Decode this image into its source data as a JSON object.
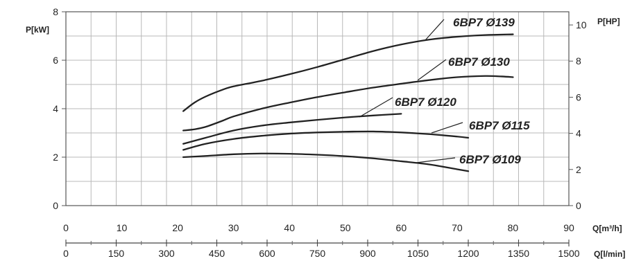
{
  "chart_data": {
    "type": "line",
    "y_left": {
      "label": "P[kW]",
      "ticks": [
        0,
        2,
        4,
        6,
        8
      ],
      "range": [
        0,
        8
      ]
    },
    "y_right": {
      "label": "P[HP]",
      "ticks": [
        0,
        2,
        4,
        6,
        8,
        10
      ],
      "range": [
        0,
        10.73
      ]
    },
    "x_primary": {
      "label": "Q[m³/h]",
      "ticks": [
        0,
        10,
        20,
        30,
        40,
        50,
        60,
        70,
        80,
        90
      ],
      "range": [
        0,
        90
      ]
    },
    "x_secondary": {
      "label": "Q[l/min]",
      "ticks": [
        0,
        150,
        300,
        450,
        600,
        750,
        900,
        1050,
        1200,
        1350,
        1500
      ],
      "range": [
        0,
        1500
      ]
    },
    "grid": true,
    "series": [
      {
        "name": "6BP7 Ø139",
        "color": "#222222",
        "x": [
          21,
          23,
          25,
          28,
          30,
          35,
          40,
          45,
          50,
          55,
          60,
          65,
          70,
          75,
          80
        ],
        "y": [
          3.9,
          4.25,
          4.5,
          4.78,
          4.92,
          5.15,
          5.42,
          5.72,
          6.05,
          6.38,
          6.65,
          6.85,
          6.97,
          7.04,
          7.07
        ]
      },
      {
        "name": "6BP7 Ø130",
        "color": "#222222",
        "x": [
          21,
          23,
          25,
          28,
          30,
          35,
          40,
          45,
          50,
          55,
          60,
          65,
          70,
          75,
          78,
          80
        ],
        "y": [
          3.1,
          3.15,
          3.25,
          3.5,
          3.68,
          4.0,
          4.25,
          4.48,
          4.68,
          4.87,
          5.03,
          5.18,
          5.3,
          5.35,
          5.33,
          5.3
        ]
      },
      {
        "name": "6BP7 Ø120",
        "color": "#222222",
        "x": [
          21,
          25,
          30,
          35,
          40,
          45,
          50,
          55,
          60
        ],
        "y": [
          2.55,
          2.8,
          3.1,
          3.3,
          3.43,
          3.54,
          3.64,
          3.72,
          3.79
        ]
      },
      {
        "name": "6BP7 Ø115",
        "color": "#222222",
        "x": [
          21,
          25,
          30,
          35,
          40,
          45,
          50,
          55,
          60,
          65,
          70,
          72
        ],
        "y": [
          2.3,
          2.55,
          2.75,
          2.88,
          2.97,
          3.02,
          3.05,
          3.06,
          3.02,
          2.95,
          2.85,
          2.8
        ]
      },
      {
        "name": "6BP7 Ø109",
        "color": "#222222",
        "x": [
          21,
          25,
          30,
          35,
          40,
          45,
          50,
          55,
          60,
          65,
          70,
          72
        ],
        "y": [
          2.0,
          2.05,
          2.12,
          2.15,
          2.14,
          2.1,
          2.04,
          1.95,
          1.83,
          1.7,
          1.5,
          1.42
        ]
      }
    ]
  }
}
